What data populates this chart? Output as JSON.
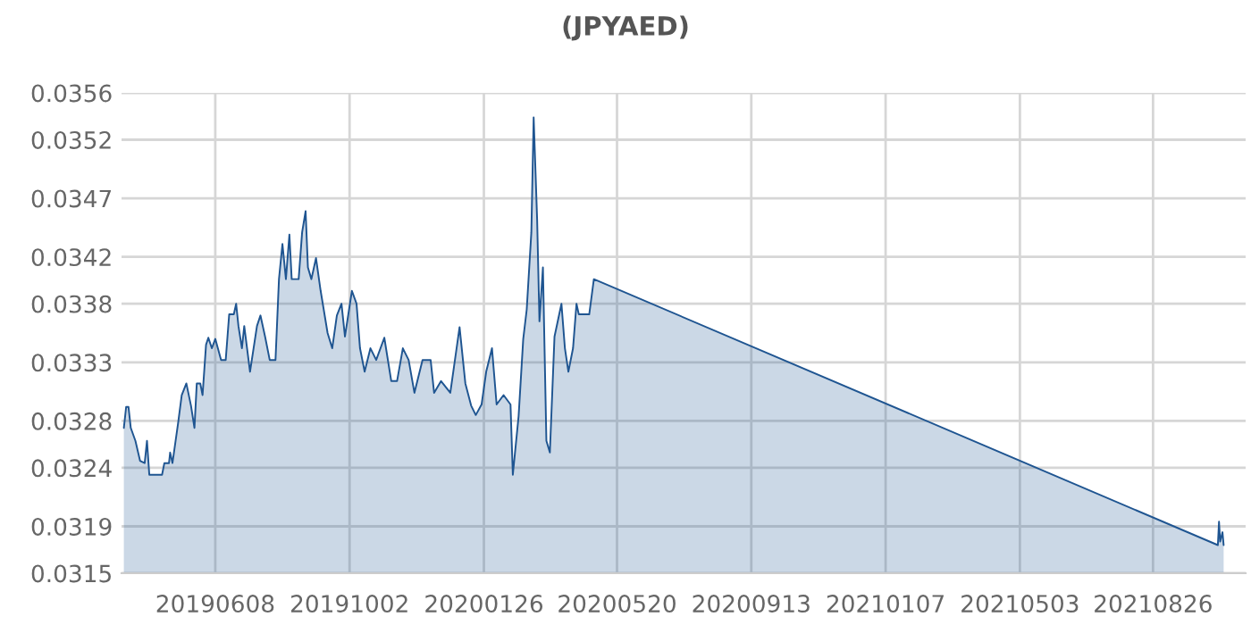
{
  "chart_data": {
    "type": "area",
    "title": "(JPYAED)",
    "xlim": [
      "2019-03-19",
      "2021-11-14"
    ],
    "xticks": [
      {
        "value": "2019-06-08",
        "label": "20190608"
      },
      {
        "value": "2019-10-02",
        "label": "20191002"
      },
      {
        "value": "2020-01-26",
        "label": "20200126"
      },
      {
        "value": "2020-05-20",
        "label": "20200520"
      },
      {
        "value": "2020-09-13",
        "label": "20200913"
      },
      {
        "value": "2021-01-07",
        "label": "20210107"
      },
      {
        "value": "2021-05-03",
        "label": "20210503"
      },
      {
        "value": "2021-08-26",
        "label": "20210826"
      }
    ],
    "ylim": [
      0.0315,
      0.0356
    ],
    "yticks": [
      0.0315,
      0.0319,
      0.0324,
      0.0328,
      0.0333,
      0.0338,
      0.0342,
      0.0347,
      0.0352,
      0.0356
    ],
    "grid": true,
    "series": [
      {
        "color": "#1f5591",
        "x": [
          "2019-03-21",
          "2019-03-23",
          "2019-03-25",
          "2019-03-27",
          "2019-03-31",
          "2019-04-04",
          "2019-04-08",
          "2019-04-10",
          "2019-04-12",
          "2019-04-23",
          "2019-04-25",
          "2019-04-29",
          "2019-04-30",
          "2019-05-02",
          "2019-05-07",
          "2019-05-10",
          "2019-05-14",
          "2019-05-18",
          "2019-05-21",
          "2019-05-23",
          "2019-05-26",
          "2019-05-28",
          "2019-05-31",
          "2019-06-02",
          "2019-06-05",
          "2019-06-08",
          "2019-06-13",
          "2019-06-17",
          "2019-06-20",
          "2019-06-24",
          "2019-06-26",
          "2019-06-28",
          "2019-07-01",
          "2019-07-03",
          "2019-07-08",
          "2019-07-14",
          "2019-07-17",
          "2019-07-21",
          "2019-07-25",
          "2019-07-30",
          "2019-08-02",
          "2019-08-05",
          "2019-08-08",
          "2019-08-11",
          "2019-08-13",
          "2019-08-19",
          "2019-08-22",
          "2019-08-25",
          "2019-08-27",
          "2019-08-30",
          "2019-09-03",
          "2019-09-07",
          "2019-09-13",
          "2019-09-17",
          "2019-09-21",
          "2019-09-25",
          "2019-09-28",
          "2019-10-04",
          "2019-10-08",
          "2019-10-11",
          "2019-10-15",
          "2019-10-20",
          "2019-10-25",
          "2019-11-01",
          "2019-11-07",
          "2019-11-12",
          "2019-11-17",
          "2019-11-22",
          "2019-11-27",
          "2019-12-04",
          "2019-12-11",
          "2019-12-14",
          "2019-12-20",
          "2019-12-28",
          "2020-01-05",
          "2020-01-10",
          "2020-01-15",
          "2020-01-19",
          "2020-01-24",
          "2020-01-28",
          "2020-02-02",
          "2020-02-06",
          "2020-02-12",
          "2020-02-18",
          "2020-02-20",
          "2020-02-25",
          "2020-02-29",
          "2020-03-03",
          "2020-03-07",
          "2020-03-09",
          "2020-03-12",
          "2020-03-14",
          "2020-03-17",
          "2020-03-20",
          "2020-03-23",
          "2020-03-27",
          "2020-04-02",
          "2020-04-05",
          "2020-04-08",
          "2020-04-12",
          "2020-04-15",
          "2020-04-17",
          "2020-04-26",
          "2020-04-30",
          "2021-10-21",
          "2021-10-22",
          "2021-10-23",
          "2021-10-25",
          "2021-10-26"
        ],
        "values": [
          0.03274,
          0.03292,
          0.03292,
          0.03274,
          0.03263,
          0.03246,
          0.03244,
          0.03263,
          0.03234,
          0.03234,
          0.03244,
          0.03244,
          0.03253,
          0.03244,
          0.03279,
          0.03302,
          0.03312,
          0.03293,
          0.03274,
          0.03312,
          0.03312,
          0.03302,
          0.03345,
          0.03351,
          0.03342,
          0.0335,
          0.03332,
          0.03332,
          0.03371,
          0.03371,
          0.0338,
          0.03361,
          0.03342,
          0.03361,
          0.03322,
          0.03361,
          0.0337,
          0.03352,
          0.03332,
          0.03332,
          0.03401,
          0.03431,
          0.03401,
          0.03439,
          0.03401,
          0.03401,
          0.03441,
          0.03459,
          0.03411,
          0.03401,
          0.03419,
          0.03391,
          0.03355,
          0.03342,
          0.0337,
          0.0338,
          0.03352,
          0.03391,
          0.0338,
          0.03342,
          0.03322,
          0.03342,
          0.03332,
          0.03351,
          0.03314,
          0.03314,
          0.03342,
          0.03332,
          0.03304,
          0.03332,
          0.03332,
          0.03304,
          0.03314,
          0.03304,
          0.0336,
          0.03312,
          0.03293,
          0.03285,
          0.03294,
          0.03322,
          0.03342,
          0.03294,
          0.03302,
          0.03294,
          0.03234,
          0.03284,
          0.0335,
          0.03375,
          0.03441,
          0.03539,
          0.03452,
          0.03365,
          0.03411,
          0.03263,
          0.03253,
          0.03352,
          0.0338,
          0.03342,
          0.03322,
          0.03342,
          0.0338,
          0.03371,
          0.03371,
          0.03401,
          0.03174,
          0.03194,
          0.03177,
          0.03185,
          0.03174
        ]
      }
    ]
  }
}
